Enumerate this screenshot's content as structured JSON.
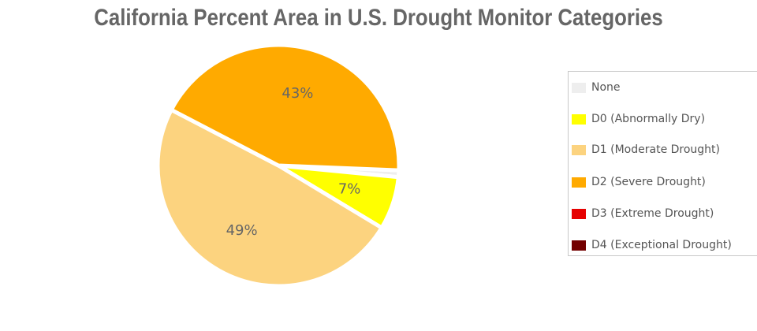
{
  "chart_data": {
    "type": "pie",
    "title": "California Percent Area in U.S. Drought Monitor Categories",
    "slices": [
      {
        "label": "None",
        "value": 0.9,
        "color": "#eeeeee",
        "data_label": ""
      },
      {
        "label": "D0 (Abnormally Dry)",
        "value": 7.1,
        "color": "#ffff00",
        "data_label": "7%"
      },
      {
        "label": "D1 (Moderate Drought)",
        "value": 49.0,
        "color": "#fcd37f",
        "data_label": "49%"
      },
      {
        "label": "D2 (Severe Drought)",
        "value": 43.0,
        "color": "#ffaa00",
        "data_label": "43%"
      },
      {
        "label": "D3 (Extreme Drought)",
        "value": 0,
        "color": "#e60000",
        "data_label": ""
      },
      {
        "label": "D4 (Exceptional Drought)",
        "value": 0,
        "color": "#730000",
        "data_label": ""
      }
    ],
    "legend_position": "right"
  }
}
